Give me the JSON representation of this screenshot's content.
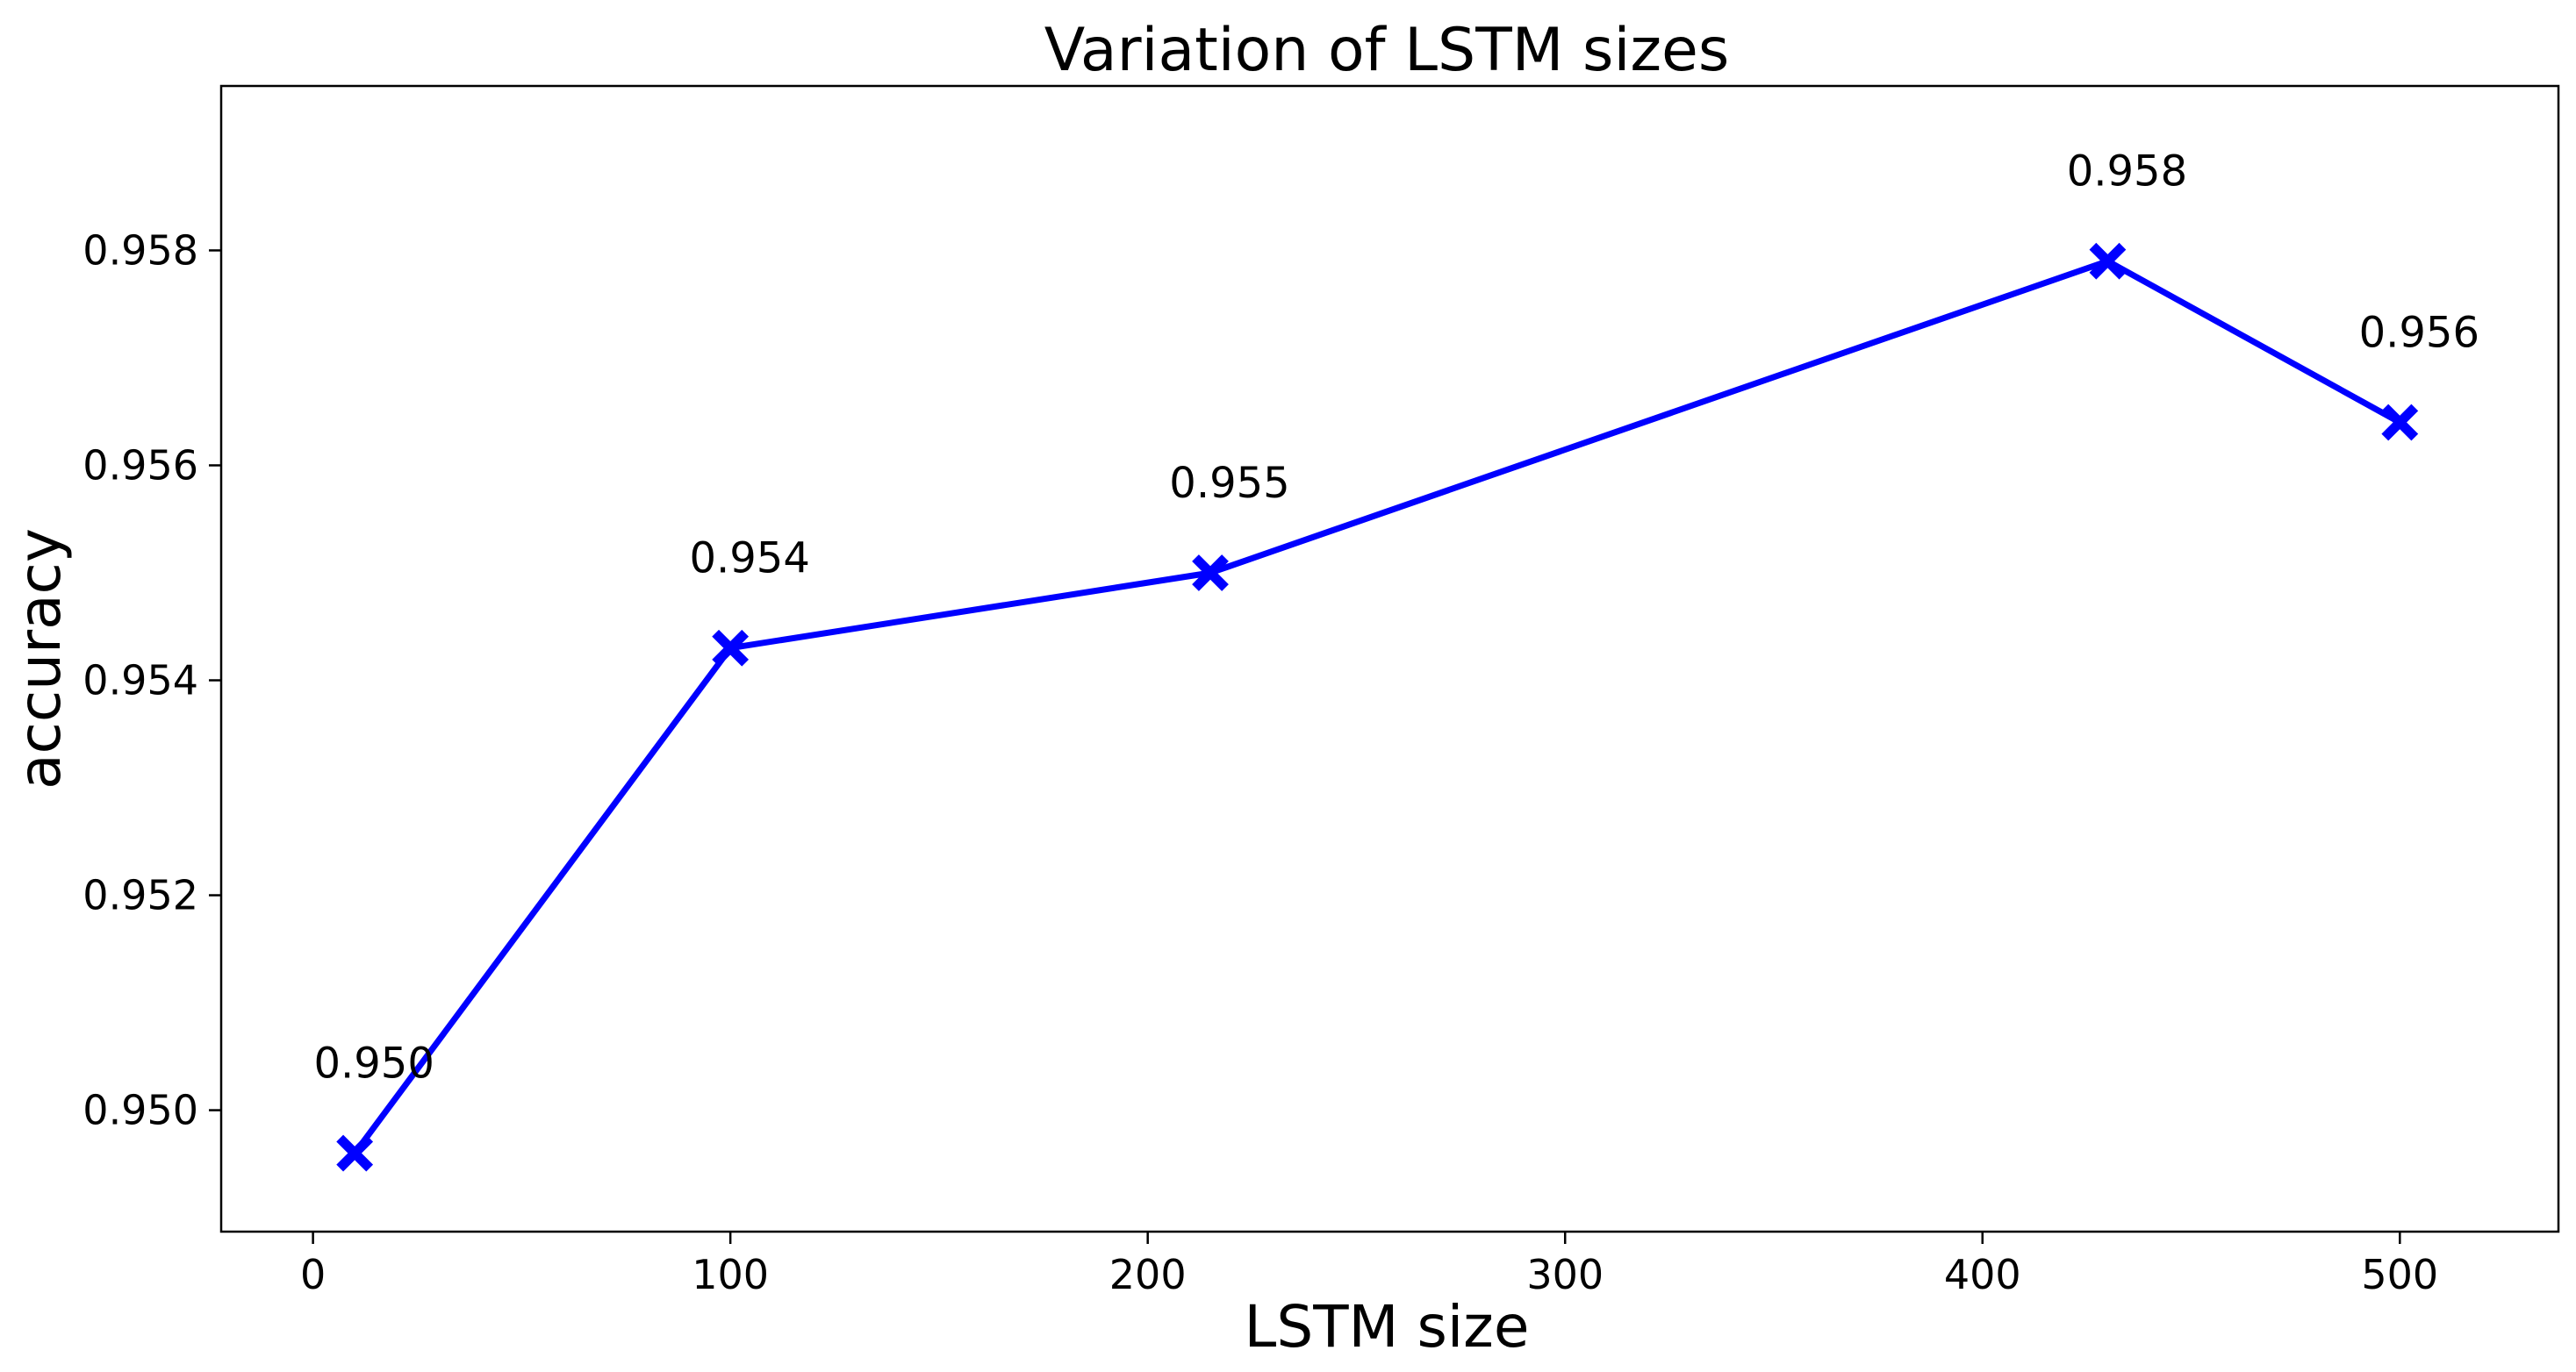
{
  "chart_data": {
    "type": "line",
    "title": "Variation of LSTM sizes",
    "xlabel": "LSTM size",
    "ylabel": "accuracy",
    "xlim": [
      -22,
      538
    ],
    "ylim": [
      0.94887,
      0.95953
    ],
    "xticks": [
      {
        "value": 0,
        "label": "0"
      },
      {
        "value": 100,
        "label": "100"
      },
      {
        "value": 200,
        "label": "200"
      },
      {
        "value": 300,
        "label": "300"
      },
      {
        "value": 400,
        "label": "400"
      },
      {
        "value": 500,
        "label": "500"
      }
    ],
    "yticks": [
      {
        "value": 0.95,
        "label": "0.950"
      },
      {
        "value": 0.952,
        "label": "0.952"
      },
      {
        "value": 0.954,
        "label": "0.954"
      },
      {
        "value": 0.956,
        "label": "0.956"
      },
      {
        "value": 0.958,
        "label": "0.958"
      }
    ],
    "grid": false,
    "series": [
      {
        "color": "#0000ff",
        "marker": "x",
        "points": [
          {
            "x": 10,
            "y": 0.9496,
            "label": "0.950"
          },
          {
            "x": 100,
            "y": 0.9543,
            "label": "0.954"
          },
          {
            "x": 215,
            "y": 0.955,
            "label": "0.955"
          },
          {
            "x": 430,
            "y": 0.9579,
            "label": "0.958"
          },
          {
            "x": 500,
            "y": 0.9564,
            "label": "0.956"
          }
        ]
      }
    ]
  }
}
